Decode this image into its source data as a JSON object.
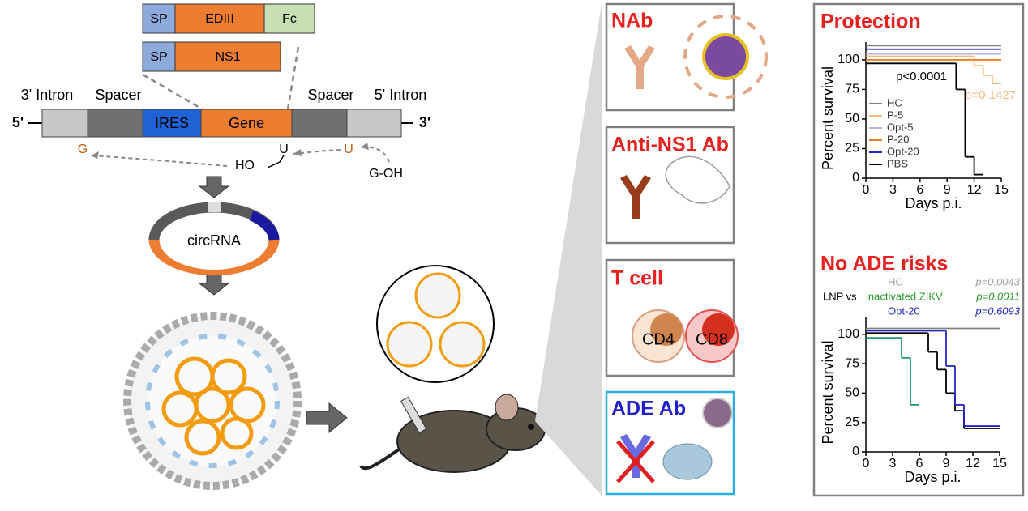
{
  "constructs": [
    {
      "segments": [
        "SP",
        "EDIII",
        "Fc"
      ]
    },
    {
      "segments": [
        "SP",
        "NS1"
      ]
    }
  ],
  "cassette": {
    "left_end": "5'",
    "right_end": "3'",
    "labels": [
      "3' Intron",
      "Spacer",
      "Spacer",
      "5' Intron"
    ],
    "regions": [
      "IRES",
      "Gene"
    ]
  },
  "splicing": {
    "g": "G",
    "u1": "U",
    "u2": "U",
    "ho": "HO",
    "goh": "G-OH"
  },
  "circ_label": "circRNA",
  "panels": [
    {
      "title": "NAb"
    },
    {
      "title": "Anti-NS1 Ab"
    },
    {
      "title": "T cell",
      "cells": [
        "CD4",
        "CD8"
      ]
    },
    {
      "title": "ADE Ab"
    }
  ],
  "charts": [
    {
      "type": "step",
      "title": "Protection",
      "y_label": "Percent survival",
      "x_label": "Days p.i.",
      "xlim": [
        0,
        15
      ],
      "ylim": [
        0,
        115
      ],
      "xticks": [
        0,
        3,
        6,
        9,
        12,
        15
      ],
      "yticks": [
        0,
        25,
        50,
        75,
        100
      ],
      "series": [
        {
          "name": "HC",
          "color": "#808080",
          "x": [
            0,
            15
          ],
          "values": [
            112
          ]
        },
        {
          "name": "P-5",
          "color": "#f6b87c",
          "x": [
            0,
            12,
            13,
            14,
            15
          ],
          "values": [
            103,
            95,
            87,
            80
          ]
        },
        {
          "name": "Opt-5",
          "color": "#b4b4e6",
          "x": [
            0,
            15
          ],
          "values": [
            105
          ]
        },
        {
          "name": "P-20",
          "color": "#ee7d22",
          "x": [
            0,
            15
          ],
          "values": [
            100
          ]
        },
        {
          "name": "Opt-20",
          "color": "#2424c8",
          "x": [
            0,
            15
          ],
          "values": [
            109
          ]
        },
        {
          "name": "PBS",
          "color": "#000000",
          "x": [
            0,
            10,
            11,
            12,
            13
          ],
          "values": [
            97,
            75,
            18,
            3
          ]
        }
      ],
      "annotations": [
        {
          "text": "p<0.0001",
          "color": "#000000"
        },
        {
          "text": "p=0.1427",
          "color": "#f6b87c"
        }
      ]
    },
    {
      "type": "step",
      "title": "No ADE risks",
      "y_label": "Percent survival",
      "x_label": "Days p.i.",
      "xlim": [
        0,
        15
      ],
      "ylim": [
        0,
        115
      ],
      "xticks": [
        0,
        3,
        6,
        9,
        12,
        15
      ],
      "yticks": [
        0,
        25,
        50,
        75,
        100
      ],
      "reference": "LNP vs",
      "comparisons": [
        {
          "name": "HC",
          "p": "p=0.0043",
          "color": "#a0a0a0"
        },
        {
          "name": "inactivated ZIKV",
          "p": "p=0.0011",
          "color": "#2a9a2a"
        },
        {
          "name": "Opt-20",
          "p": "p=0.6093",
          "color": "#2424c8"
        }
      ],
      "series": [
        {
          "color": "#808080",
          "x": [
            0,
            15
          ],
          "values": [
            105
          ]
        },
        {
          "color": "#1f9a6a",
          "x": [
            0,
            4,
            5,
            6
          ],
          "values": [
            97,
            80,
            40
          ]
        },
        {
          "color": "#000000",
          "x": [
            0,
            7,
            8,
            9,
            10,
            11,
            15
          ],
          "values": [
            101,
            85,
            70,
            50,
            35,
            20
          ]
        },
        {
          "color": "#2424c8",
          "x": [
            0,
            9,
            10,
            11,
            15
          ],
          "values": [
            103,
            73,
            40,
            22
          ]
        }
      ]
    }
  ]
}
